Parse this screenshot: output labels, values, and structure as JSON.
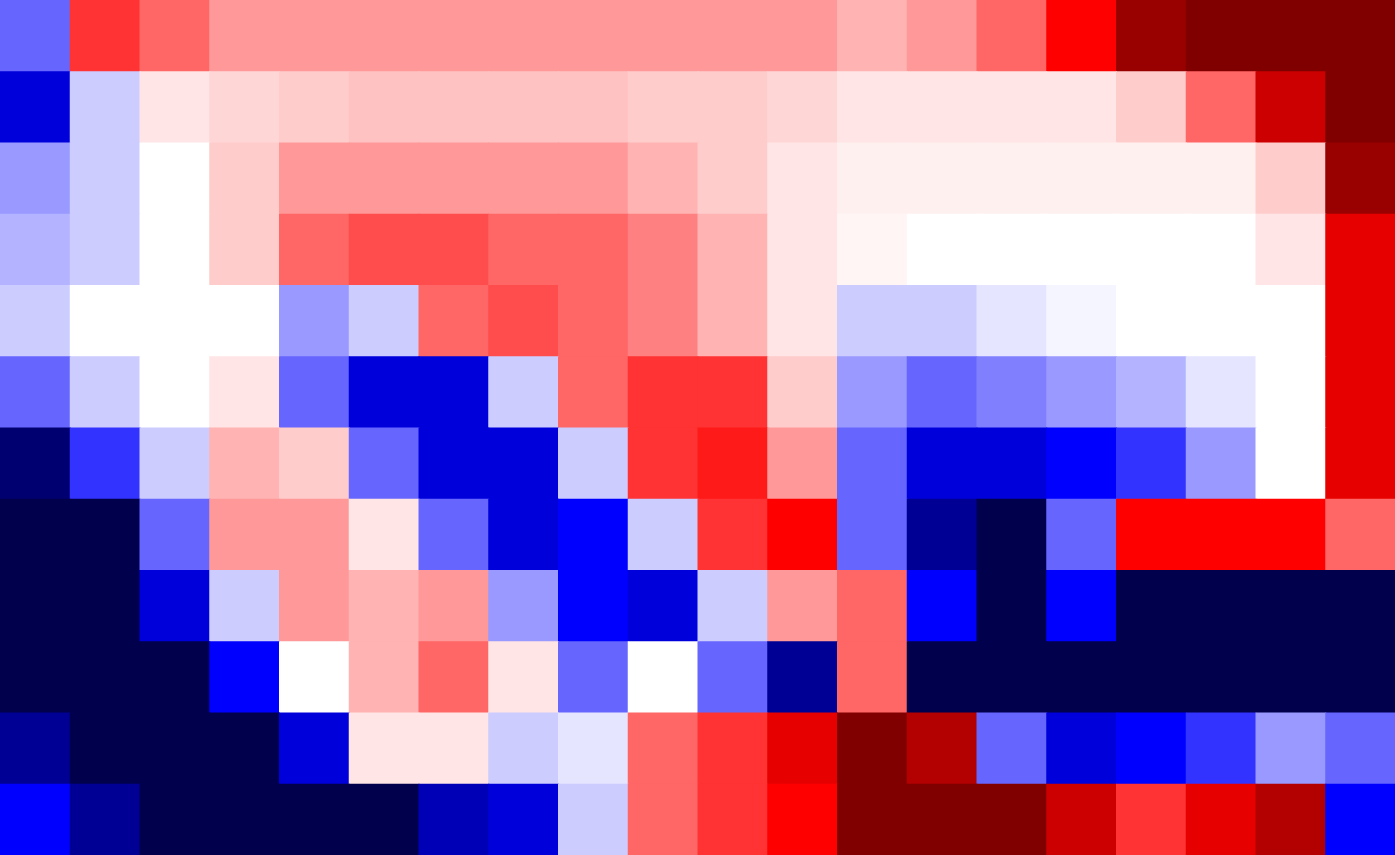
{
  "chart_data": {
    "type": "heatmap",
    "xlim": [
      0,
      20
    ],
    "ylim": [
      0,
      12
    ],
    "clim": [
      -1,
      1
    ],
    "tick_labels": false,
    "cells": [
      [
        -0.3,
        0.4,
        0.3,
        0.2,
        0.2,
        0.2,
        0.2,
        0.2,
        0.2,
        0.2,
        0.2,
        0.2,
        0.15,
        0.2,
        0.3,
        0.5,
        0.9,
        1,
        1,
        1
      ],
      [
        -0.6,
        -0.1,
        0.05,
        0.08,
        0.1,
        0.12,
        0.12,
        0.12,
        0.12,
        0.1,
        0.1,
        0.08,
        0.05,
        0.05,
        0.05,
        0.05,
        0.1,
        0.3,
        0.7,
        1
      ],
      [
        -0.2,
        -0.1,
        0,
        0.1,
        0.2,
        0.2,
        0.2,
        0.2,
        0.2,
        0.15,
        0.1,
        0.05,
        0.03,
        0.03,
        0.03,
        0.03,
        0.03,
        0.03,
        0.1,
        0.9
      ],
      [
        -0.15,
        -0.1,
        0,
        0.1,
        0.3,
        0.35,
        0.35,
        0.3,
        0.3,
        0.25,
        0.15,
        0.05,
        0.02,
        0,
        0,
        0,
        0,
        0,
        0.05,
        0.6
      ],
      [
        -0.1,
        0,
        0,
        0,
        -0.2,
        -0.1,
        0.3,
        0.35,
        0.3,
        0.25,
        0.15,
        0.05,
        -0.1,
        -0.1,
        -0.05,
        -0.02,
        0,
        0,
        0,
        0.6
      ],
      [
        -0.3,
        -0.1,
        0,
        0.05,
        -0.3,
        -0.6,
        -0.6,
        -0.1,
        0.3,
        0.4,
        0.4,
        0.1,
        -0.2,
        -0.3,
        -0.25,
        -0.2,
        -0.15,
        -0.05,
        0,
        0.6
      ],
      [
        -0.9,
        -0.4,
        -0.1,
        0.15,
        0.1,
        -0.3,
        -0.6,
        -0.6,
        -0.1,
        0.4,
        0.45,
        0.2,
        -0.3,
        -0.6,
        -0.6,
        -0.5,
        -0.4,
        -0.2,
        0,
        0.6
      ],
      [
        -1,
        -1,
        -0.3,
        0.2,
        0.2,
        0.05,
        -0.3,
        -0.6,
        -0.5,
        -0.1,
        0.4,
        0.5,
        -0.3,
        -0.8,
        -1,
        -0.3,
        0.5,
        0.5,
        0.5,
        0.3
      ],
      [
        -1,
        -1,
        -0.6,
        -0.1,
        0.2,
        0.15,
        0.2,
        -0.2,
        -0.5,
        -0.6,
        -0.1,
        0.2,
        0.3,
        -0.5,
        -1,
        -0.5,
        -1,
        -1,
        -1,
        -1
      ],
      [
        -1,
        -1,
        -1,
        -0.5,
        0,
        0.15,
        0.3,
        0.05,
        -0.3,
        0,
        -0.3,
        -0.8,
        0.3,
        -1,
        -1,
        -1,
        -1,
        -1,
        -1,
        -1
      ],
      [
        -0.8,
        -1,
        -1,
        -1,
        -0.6,
        0.05,
        0.05,
        -0.1,
        -0.05,
        0.3,
        0.4,
        0.6,
        1,
        0.8,
        -0.3,
        -0.6,
        -0.5,
        -0.4,
        -0.2,
        -0.3
      ],
      [
        -0.5,
        -0.8,
        -1,
        -1,
        -1,
        -1,
        -0.7,
        -0.6,
        -0.1,
        0.3,
        0.4,
        0.5,
        1,
        1,
        1,
        0.7,
        0.4,
        0.6,
        0.8,
        -0.5
      ]
    ]
  }
}
